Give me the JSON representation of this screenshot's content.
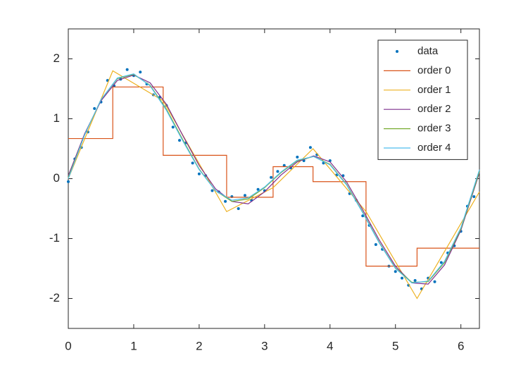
{
  "chart_data": {
    "type": "line",
    "xlim": [
      0,
      6.2832
    ],
    "ylim": [
      -2.5,
      2.5
    ],
    "xticks": [
      0,
      1,
      2,
      3,
      4,
      5,
      6
    ],
    "yticks": [
      -2,
      -1,
      0,
      1,
      2
    ],
    "legend": "upper right",
    "series": [
      {
        "name": "data",
        "color": "#0072bd",
        "mode": "markers",
        "x": [
          0,
          0.1,
          0.2,
          0.3,
          0.4,
          0.5,
          0.6,
          0.7,
          0.8,
          0.9,
          1.0,
          1.1,
          1.2,
          1.3,
          1.4,
          1.5,
          1.6,
          1.7,
          1.8,
          1.9,
          2.0,
          2.1,
          2.2,
          2.3,
          2.4,
          2.5,
          2.6,
          2.7,
          2.8,
          2.9,
          3.0,
          3.1,
          3.2,
          3.3,
          3.4,
          3.5,
          3.6,
          3.7,
          3.8,
          3.9,
          4.0,
          4.1,
          4.2,
          4.3,
          4.4,
          4.5,
          4.6,
          4.7,
          4.8,
          4.9,
          5.0,
          5.1,
          5.2,
          5.3,
          5.4,
          5.5,
          5.6,
          5.7,
          5.8,
          5.9,
          6.0,
          6.1,
          6.2
        ],
        "values": [
          -0.05,
          0.33,
          0.52,
          0.78,
          1.17,
          1.28,
          1.64,
          1.55,
          1.66,
          1.82,
          1.72,
          1.78,
          1.58,
          1.4,
          1.36,
          1.22,
          0.86,
          0.64,
          0.6,
          0.26,
          0.08,
          0.05,
          -0.2,
          -0.22,
          -0.38,
          -0.3,
          -0.5,
          -0.28,
          -0.36,
          -0.18,
          -0.2,
          0.02,
          0.12,
          0.22,
          0.18,
          0.36,
          0.3,
          0.52,
          0.4,
          0.26,
          0.3,
          0.06,
          0.05,
          -0.25,
          -0.36,
          -0.62,
          -0.78,
          -1.1,
          -1.18,
          -1.46,
          -1.55,
          -1.66,
          -1.78,
          -1.7,
          -1.84,
          -1.66,
          -1.72,
          -1.4,
          -1.24,
          -1.12,
          -0.88,
          -0.46,
          -0.3
        ]
      },
      {
        "name": "order 0",
        "color": "#d95319",
        "mode": "line",
        "x": [
          0,
          0.68,
          0.68,
          1.45,
          1.45,
          2.42,
          2.42,
          3.13,
          3.13,
          3.74,
          3.74,
          4.55,
          4.55,
          5.33,
          5.33,
          6.2832
        ],
        "values": [
          0.67,
          0.67,
          1.53,
          1.53,
          0.39,
          0.39,
          -0.31,
          -0.31,
          0.2,
          0.2,
          -0.05,
          -0.05,
          -1.46,
          -1.46,
          -1.16,
          -1.16
        ]
      },
      {
        "name": "order 1",
        "color": "#edb120",
        "mode": "line",
        "x": [
          0,
          0.68,
          1.45,
          2.42,
          3.13,
          3.74,
          4.55,
          5.33,
          6.2832
        ],
        "values": [
          0.0,
          1.8,
          1.3,
          -0.55,
          -0.15,
          0.5,
          -0.55,
          -2.0,
          -0.22
        ]
      },
      {
        "name": "order 2",
        "color": "#7e2f8e",
        "mode": "line",
        "x": [
          0,
          0.25,
          0.5,
          0.75,
          1.0,
          1.25,
          1.5,
          1.75,
          2.0,
          2.25,
          2.5,
          2.75,
          3.0,
          3.25,
          3.5,
          3.75,
          4.0,
          4.25,
          4.5,
          4.75,
          5.0,
          5.25,
          5.5,
          5.75,
          6.0,
          6.2832
        ],
        "values": [
          0.05,
          0.75,
          1.3,
          1.64,
          1.73,
          1.6,
          1.24,
          0.72,
          0.22,
          -0.17,
          -0.38,
          -0.42,
          -0.22,
          0.06,
          0.28,
          0.38,
          0.28,
          -0.05,
          -0.52,
          -1.02,
          -1.46,
          -1.74,
          -1.76,
          -1.44,
          -0.86,
          0.1
        ]
      },
      {
        "name": "order 3",
        "color": "#77ac30",
        "mode": "line",
        "x": [
          0,
          0.25,
          0.5,
          0.75,
          1.0,
          1.25,
          1.5,
          1.75,
          2.0,
          2.25,
          2.5,
          2.75,
          3.0,
          3.25,
          3.5,
          3.75,
          4.0,
          4.25,
          4.5,
          4.75,
          5.0,
          5.25,
          5.5,
          5.75,
          6.0,
          6.2832
        ],
        "values": [
          0.02,
          0.73,
          1.32,
          1.67,
          1.74,
          1.56,
          1.16,
          0.65,
          0.16,
          -0.2,
          -0.38,
          -0.34,
          -0.15,
          0.1,
          0.3,
          0.37,
          0.24,
          -0.09,
          -0.56,
          -1.06,
          -1.49,
          -1.73,
          -1.72,
          -1.4,
          -0.84,
          0.12
        ]
      },
      {
        "name": "order 4",
        "color": "#4dbeee",
        "mode": "line",
        "x": [
          0,
          0.25,
          0.5,
          0.75,
          1.0,
          1.25,
          1.5,
          1.75,
          2.0,
          2.25,
          2.5,
          2.75,
          3.0,
          3.25,
          3.5,
          3.75,
          4.0,
          4.25,
          4.5,
          4.75,
          5.0,
          5.25,
          5.5,
          5.75,
          6.0,
          6.2832
        ],
        "values": [
          0.0,
          0.73,
          1.32,
          1.68,
          1.75,
          1.55,
          1.14,
          0.63,
          0.15,
          -0.2,
          -0.36,
          -0.32,
          -0.14,
          0.11,
          0.31,
          0.37,
          0.23,
          -0.1,
          -0.57,
          -1.07,
          -1.5,
          -1.74,
          -1.71,
          -1.38,
          -0.82,
          0.15
        ]
      }
    ]
  }
}
